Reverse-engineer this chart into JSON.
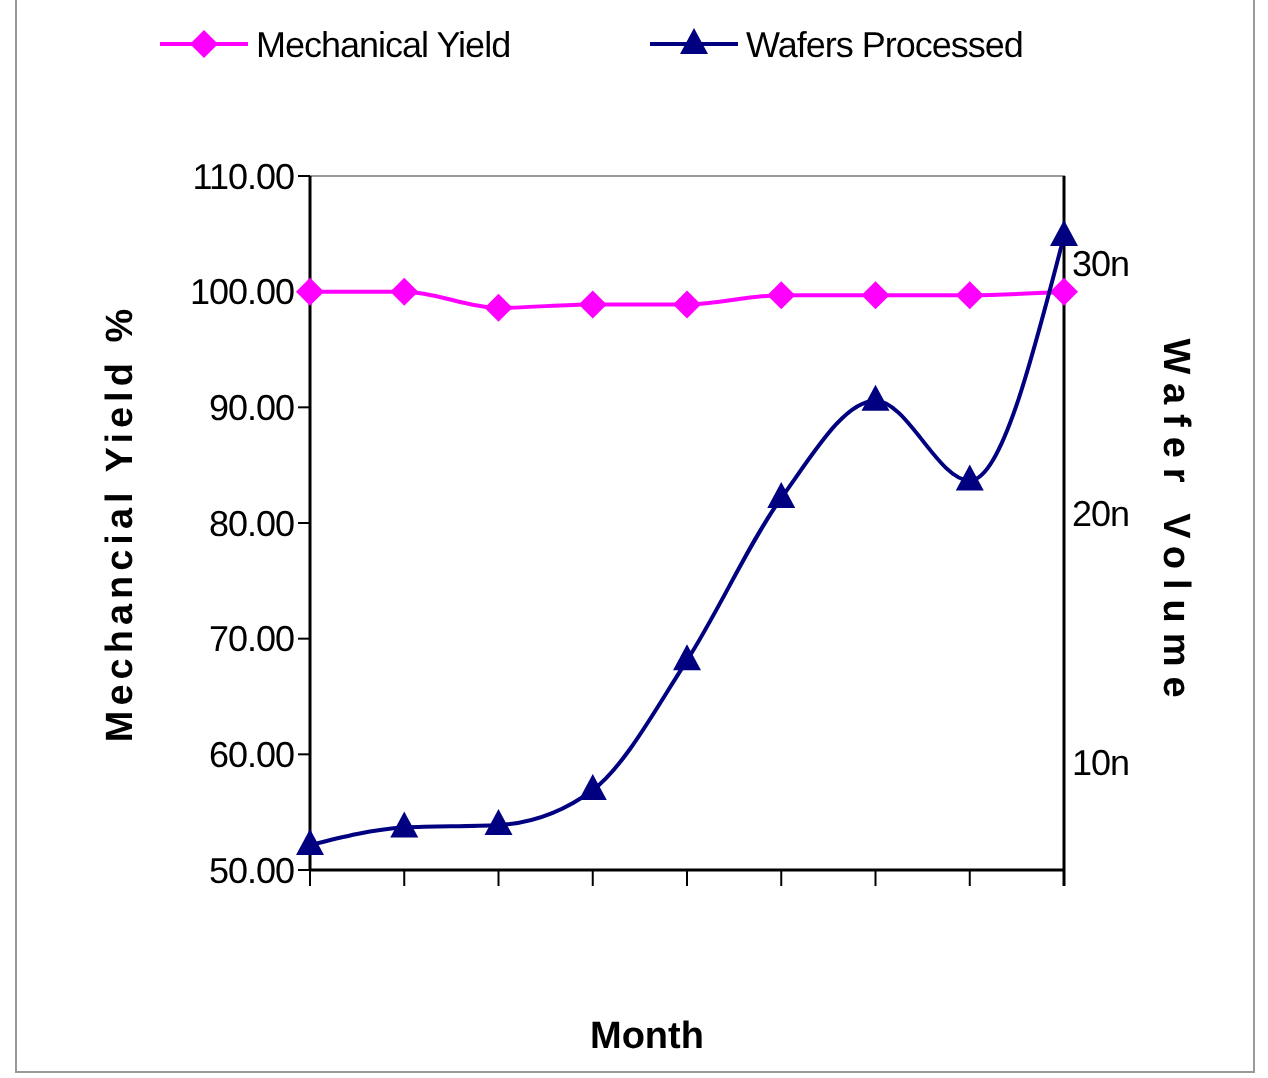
{
  "chart_data": {
    "type": "line",
    "xlabel": "Month",
    "ylabel": "Mechancial Yield %",
    "y2label": "Wafer Volume",
    "categories": [
      null,
      null,
      null,
      null,
      null,
      null,
      null,
      null,
      null
    ],
    "series": [
      {
        "name": "Mechanical Yield",
        "color": "#ff00ff",
        "marker": "diamond",
        "values": [
          100,
          100,
          98.6,
          98.9,
          98.9,
          99.7,
          99.7,
          99.7,
          100
        ]
      },
      {
        "name": "Wafers Processed",
        "color": "#000080",
        "marker": "triangle",
        "axis": "y2",
        "values": [
          6.7,
          7.4,
          7.5,
          8.9,
          14.1,
          20.6,
          24.5,
          21.3,
          31.1
        ]
      }
    ],
    "ylim": [
      50,
      110
    ],
    "yticks": [
      {
        "value": 50,
        "label": "50.00"
      },
      {
        "value": 60,
        "label": "60.00"
      },
      {
        "value": 70,
        "label": "70.00"
      },
      {
        "value": 80,
        "label": "80.00"
      },
      {
        "value": 90,
        "label": "90.00"
      },
      {
        "value": 100,
        "label": "100.00"
      },
      {
        "value": 110,
        "label": "110.00"
      }
    ],
    "y2lim": [
      5.7,
      33.5
    ],
    "y2ticks": [
      {
        "value": 10,
        "label": "10n"
      },
      {
        "value": 20,
        "label": "20n"
      },
      {
        "value": 30,
        "label": "30n"
      }
    ],
    "grid": false,
    "legend": "top",
    "line_style": "solid"
  }
}
